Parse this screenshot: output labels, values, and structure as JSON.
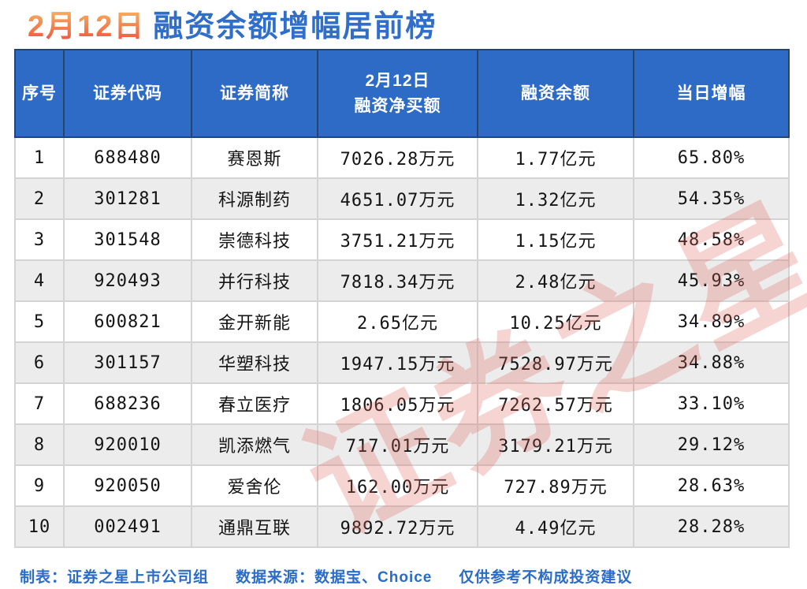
{
  "title": {
    "date": "2月12日",
    "text": "融资余额增幅居前榜"
  },
  "colors": {
    "header_bg": "#2e6bc6",
    "header_border": "#26456b",
    "title_blue": "#2f6ecb",
    "title_orange_top": "#f9a65a",
    "title_orange_bottom": "#ec5b44",
    "alt_row_bg": "#ececec",
    "cell_border": "#d4d4d4",
    "footer_text": "#2b6cc8",
    "watermark_red": "#e0645a"
  },
  "watermark_text": "证券之星",
  "chart_data": {
    "type": "table",
    "title": "2月12日 融资余额增幅居前榜",
    "columns": [
      "序号",
      "证券代码",
      "证券简称",
      "2月12日\n融资净买额",
      "融资余额",
      "当日增幅"
    ],
    "rows": [
      [
        "1",
        "688480",
        "赛恩斯",
        "7026.28万元",
        "1.77亿元",
        "65.80%"
      ],
      [
        "2",
        "301281",
        "科源制药",
        "4651.07万元",
        "1.32亿元",
        "54.35%"
      ],
      [
        "3",
        "301548",
        "崇德科技",
        "3751.21万元",
        "1.15亿元",
        "48.58%"
      ],
      [
        "4",
        "920493",
        "并行科技",
        "7818.34万元",
        "2.48亿元",
        "45.93%"
      ],
      [
        "5",
        "600821",
        "金开新能",
        "2.65亿元",
        "10.25亿元",
        "34.89%"
      ],
      [
        "6",
        "301157",
        "华塑科技",
        "1947.15万元",
        "7528.97万元",
        "34.88%"
      ],
      [
        "7",
        "688236",
        "春立医疗",
        "1806.05万元",
        "7262.57万元",
        "33.10%"
      ],
      [
        "8",
        "920010",
        "凯添燃气",
        "717.01万元",
        "3179.21万元",
        "29.12%"
      ],
      [
        "9",
        "920050",
        "爱舍伦",
        "162.00万元",
        "727.89万元",
        "28.63%"
      ],
      [
        "10",
        "002491",
        "通鼎互联",
        "9892.72万元",
        "4.49亿元",
        "28.28%"
      ]
    ]
  },
  "footer": {
    "maker": "制表：证券之星上市公司组",
    "source": "数据来源：数据宝、Choice",
    "disclaimer": "仅供参考不构成投资建议"
  }
}
